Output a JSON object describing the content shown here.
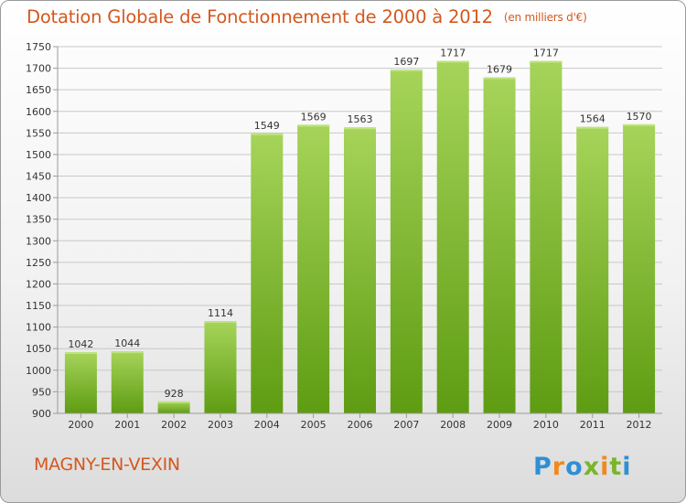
{
  "header": {
    "title": "Dotation Globale de Fonctionnement de 2000 à 2012",
    "unit_note": "(en milliers d'€)"
  },
  "footer": {
    "commune": "MAGNY-EN-VEXIN",
    "brand": "Proxiti"
  },
  "colors": {
    "title": "#d4581e",
    "bar_light": "#a6d45a",
    "bar_dark": "#5e9c12",
    "grid": "#c8c8c8"
  },
  "chart_data": {
    "type": "bar",
    "categories": [
      "2000",
      "2001",
      "2002",
      "2003",
      "2004",
      "2005",
      "2006",
      "2007",
      "2008",
      "2009",
      "2010",
      "2011",
      "2012"
    ],
    "values": [
      1042,
      1044,
      928,
      1114,
      1549,
      1569,
      1563,
      1697,
      1717,
      1679,
      1717,
      1564,
      1570
    ],
    "title": "Dotation Globale de Fonctionnement de 2000 à 2012",
    "ylim": [
      900,
      1750
    ],
    "yticks": [
      900,
      950,
      1000,
      1050,
      1100,
      1150,
      1200,
      1250,
      1300,
      1350,
      1400,
      1450,
      1500,
      1550,
      1600,
      1650,
      1700,
      1750
    ],
    "grid": true,
    "data_labels": true
  }
}
